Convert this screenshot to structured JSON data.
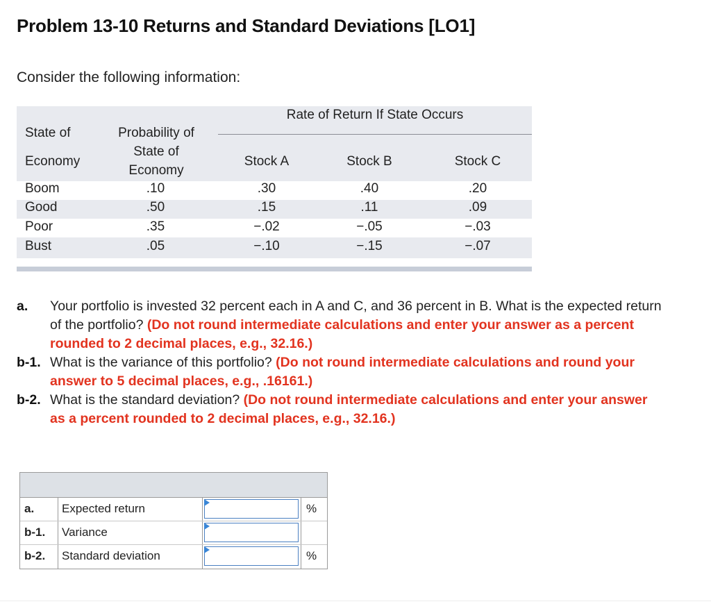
{
  "title": "Problem 13-10 Returns and Standard Deviations [LO1]",
  "intro": "Consider the following information:",
  "table": {
    "group_header": "Rate of Return If State Occurs",
    "col_state": [
      "State of",
      "Economy"
    ],
    "col_prob": [
      "Probability of",
      "State of",
      "Economy"
    ],
    "col_a": "Stock A",
    "col_b": "Stock B",
    "col_c": "Stock C",
    "rows": [
      {
        "state": "Boom",
        "prob": ".10",
        "a": ".30",
        "b": ".40",
        "c": ".20"
      },
      {
        "state": "Good",
        "prob": ".50",
        "a": ".15",
        "b": ".11",
        "c": ".09"
      },
      {
        "state": "Poor",
        "prob": ".35",
        "a": "−.02",
        "b": "−.05",
        "c": "−.03"
      },
      {
        "state": "Bust",
        "prob": ".05",
        "a": "−.10",
        "b": "−.15",
        "c": "−.07"
      }
    ]
  },
  "questions": [
    {
      "label": "a.",
      "text": "Your portfolio is invested 32 percent each in A and C, and 36 percent in B. What is the expected return of the portfolio?",
      "note": "(Do not round intermediate calculations and enter your answer as a percent rounded to 2 decimal places, e.g., 32.16.)"
    },
    {
      "label": "b-1.",
      "text": "What is the variance of this portfolio?",
      "note": "(Do not round intermediate calculations and round your answer to 5 decimal places, e.g., .16161.)"
    },
    {
      "label": "b-2.",
      "text": "What is the standard deviation?",
      "note": "(Do not round intermediate calculations and enter your answer as a percent rounded to 2 decimal places, e.g., 32.16.)"
    }
  ],
  "answers": [
    {
      "key": "a.",
      "label": "Expected return",
      "value": "",
      "unit": "%"
    },
    {
      "key": "b-1.",
      "label": "Variance",
      "value": "",
      "unit": ""
    },
    {
      "key": "b-2.",
      "label": "Standard deviation",
      "value": "",
      "unit": "%"
    }
  ],
  "colors": {
    "accent_red": "#e2331f",
    "header_band": "#e8eaef",
    "input_border": "#4a7fc1"
  }
}
